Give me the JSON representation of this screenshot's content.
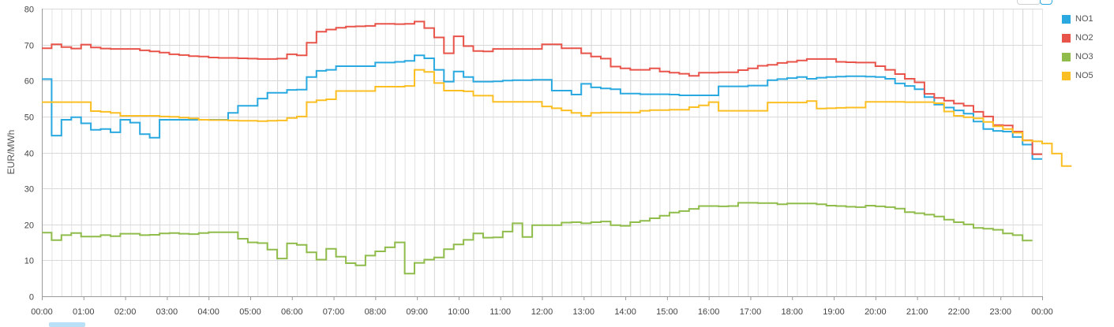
{
  "chart_data": {
    "type": "line",
    "step": true,
    "ylabel": "EUR/MWh",
    "ylim": [
      0,
      80
    ],
    "yticks": [
      0,
      10,
      20,
      30,
      40,
      50,
      60,
      70,
      80
    ],
    "xticks": [
      "00:00",
      "01:00",
      "02:00",
      "03:00",
      "04:00",
      "05:00",
      "06:00",
      "07:00",
      "08:00",
      "09:00",
      "10:00",
      "11:00",
      "12:00",
      "13:00",
      "14:00",
      "15:00",
      "16:00",
      "17:00",
      "18:00",
      "19:00",
      "20:00",
      "21:00",
      "22:00",
      "23:00",
      "00:00"
    ],
    "grid": true,
    "legend_position": "top-right",
    "series": [
      {
        "name": "NO1",
        "color": "#2aa9e0",
        "values": [
          60.4,
          44.7,
          49.1,
          49.8,
          48.1,
          46.3,
          46.5,
          45.6,
          49.1,
          48.3,
          45.1,
          44.1,
          49.1,
          49.1,
          49.1,
          49.1,
          49.1,
          49.1,
          49.1,
          51.0,
          53.0,
          53.0,
          55.0,
          56.6,
          56.6,
          57.4,
          57.5,
          61.0,
          62.7,
          63.0,
          64.0,
          64.0,
          64.0,
          64.0,
          65.0,
          65.0,
          65.2,
          65.5,
          67.0,
          66.2,
          63.0,
          59.7,
          62.5,
          61.0,
          59.7,
          59.7,
          59.8,
          60.0,
          60.1,
          60.1,
          60.2,
          60.2,
          57.2,
          57.2,
          56.1,
          59.1,
          58.1,
          57.8,
          57.6,
          56.4,
          56.4,
          56.2,
          56.2,
          56.2,
          56.1,
          55.9,
          55.9,
          55.9,
          55.9,
          58.4,
          58.4,
          58.4,
          58.6,
          58.6,
          60.1,
          60.4,
          60.7,
          61.0,
          60.5,
          60.8,
          61.0,
          61.1,
          61.2,
          61.2,
          61.1,
          61.0,
          60.5,
          59.2,
          58.5,
          57.6,
          55.4,
          53.3,
          52.5,
          51.7,
          50.8,
          48.6,
          46.5,
          46.0,
          45.8,
          44.3,
          42.2,
          38.2
        ]
      },
      {
        "name": "NO2",
        "color": "#e8534a",
        "values": [
          69.0,
          70.1,
          69.3,
          68.9,
          70.0,
          69.2,
          68.9,
          68.8,
          68.8,
          68.8,
          68.4,
          68.1,
          67.8,
          67.3,
          67.1,
          66.8,
          66.7,
          66.4,
          66.3,
          66.3,
          66.2,
          66.1,
          66.0,
          66.0,
          66.1,
          67.3,
          67.0,
          70.5,
          73.6,
          74.2,
          74.7,
          75.0,
          75.1,
          75.2,
          75.8,
          75.8,
          75.7,
          75.8,
          76.4,
          74.6,
          72.0,
          67.6,
          72.3,
          69.6,
          68.2,
          68.1,
          68.8,
          68.8,
          68.8,
          68.8,
          68.8,
          70.1,
          70.1,
          69.0,
          69.0,
          67.6,
          66.7,
          66.1,
          63.9,
          63.4,
          63.0,
          63.0,
          63.4,
          62.5,
          62.2,
          61.9,
          61.3,
          62.2,
          62.2,
          62.3,
          62.3,
          62.9,
          63.4,
          64.1,
          64.4,
          64.9,
          65.2,
          65.6,
          66.0,
          66.0,
          66.0,
          65.2,
          65.1,
          65.0,
          65.0,
          64.0,
          63.0,
          61.8,
          60.5,
          59.5,
          56.3,
          55.2,
          54.4,
          53.6,
          53.0,
          51.3,
          50.0,
          47.6,
          47.5,
          45.8,
          43.4,
          39.5
        ]
      },
      {
        "name": "NO3",
        "color": "#8fbc4a",
        "values": [
          17.7,
          15.6,
          17.0,
          17.6,
          16.6,
          16.6,
          17.0,
          16.7,
          17.4,
          17.4,
          17.0,
          17.1,
          17.5,
          17.6,
          17.4,
          17.3,
          17.6,
          17.8,
          17.8,
          17.8,
          16.0,
          15.0,
          14.8,
          13.0,
          10.5,
          14.7,
          14.3,
          12.2,
          10.2,
          13.2,
          11.0,
          9.2,
          8.6,
          11.3,
          12.5,
          13.6,
          15.0,
          6.3,
          9.3,
          10.2,
          10.8,
          13.1,
          14.4,
          15.7,
          17.5,
          16.3,
          16.4,
          18.0,
          20.3,
          16.5,
          19.8,
          19.8,
          19.8,
          20.5,
          20.6,
          20.3,
          20.6,
          20.8,
          19.8,
          19.6,
          20.6,
          21.0,
          21.7,
          22.4,
          23.3,
          23.7,
          24.3,
          25.1,
          25.1,
          25.0,
          25.1,
          26.0,
          26.0,
          25.9,
          25.9,
          25.6,
          25.8,
          25.8,
          25.8,
          25.6,
          25.2,
          25.1,
          24.9,
          24.8,
          25.2,
          25.0,
          24.8,
          24.4,
          23.4,
          23.1,
          22.7,
          22.2,
          21.3,
          20.6,
          20.0,
          19.0,
          18.8,
          18.5,
          17.5,
          17.0,
          15.5
        ]
      },
      {
        "name": "NO5",
        "color": "#fbbf24",
        "values": [
          54.0,
          54.0,
          54.0,
          54.0,
          54.0,
          51.5,
          51.3,
          51.0,
          50.2,
          50.2,
          50.2,
          50.2,
          50.0,
          49.9,
          49.7,
          49.5,
          49.1,
          49.0,
          49.0,
          48.9,
          48.8,
          48.8,
          48.7,
          48.8,
          48.9,
          49.6,
          50.0,
          54.0,
          54.5,
          54.8,
          57.1,
          57.1,
          57.1,
          57.1,
          58.3,
          58.3,
          58.3,
          58.5,
          63.0,
          62.4,
          59.3,
          57.2,
          57.2,
          57.0,
          55.8,
          55.8,
          54.1,
          54.1,
          54.1,
          54.1,
          54.1,
          52.8,
          52.3,
          51.7,
          51.0,
          50.2,
          51.0,
          51.1,
          51.1,
          51.1,
          51.1,
          51.6,
          51.8,
          51.8,
          51.9,
          51.9,
          52.6,
          53.1,
          54.0,
          51.6,
          51.6,
          51.6,
          51.6,
          51.6,
          53.9,
          53.9,
          53.9,
          53.9,
          54.3,
          52.2,
          52.3,
          52.4,
          52.5,
          52.5,
          54.1,
          54.1,
          54.1,
          54.1,
          54.0,
          54.0,
          54.0,
          53.7,
          51.4,
          50.2,
          49.8,
          49.5,
          48.5,
          47.3,
          46.5,
          45.5,
          43.3,
          43.1,
          42.5,
          39.7,
          36.2
        ]
      }
    ]
  }
}
